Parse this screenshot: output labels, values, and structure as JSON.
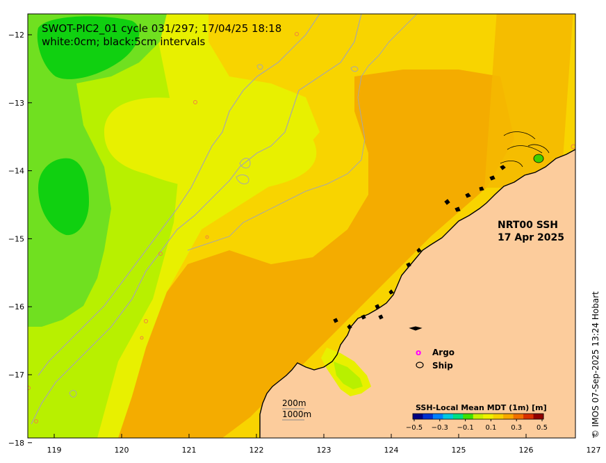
{
  "title": {
    "line1": "SWOT-PIC2_01 cycle 031/297; 17/04/25 18:18",
    "line2": "white:0cm; black:5cm intervals"
  },
  "product_label": {
    "line1": "NRT00 SSH",
    "line2": "17 Apr 2025"
  },
  "legend": {
    "argo": {
      "symbol": "o",
      "label": "Argo",
      "color": "#ff00ff"
    },
    "ship": {
      "label": "Ship",
      "color": "#000000"
    }
  },
  "scale_bar": {
    "label1": "200m",
    "label2": "1000m"
  },
  "colorbar": {
    "title": "SSH-Local Mean MDT (1m) [m]",
    "ticks": [
      "−0.5",
      "−0.3",
      "−0.1",
      "0.1",
      "0.3",
      "0.5"
    ],
    "colors": [
      "#000080",
      "#0030d0",
      "#0080ff",
      "#00c8e0",
      "#00e080",
      "#40e000",
      "#c8f000",
      "#f0f000",
      "#f8d000",
      "#f8a800",
      "#f07000",
      "#d83000",
      "#900000"
    ]
  },
  "credit": "© IMOS 07-Sep-2025 13:24 Hobart",
  "axes": {
    "x_ticks": [
      "119",
      "120",
      "121",
      "122",
      "123",
      "124",
      "125",
      "126",
      "127"
    ],
    "y_ticks": [
      "−12",
      "−13",
      "−14",
      "−15",
      "−16",
      "−17",
      "−18"
    ]
  },
  "colors": {
    "land": "#fccc9c",
    "sea_green_dark": "#10d010",
    "sea_green": "#70e020",
    "sea_lime": "#b8f000",
    "sea_yellow": "#e8f000",
    "sea_gold": "#f8d400",
    "sea_orange": "#f4ac00",
    "isobath": "#a8a8a8"
  }
}
